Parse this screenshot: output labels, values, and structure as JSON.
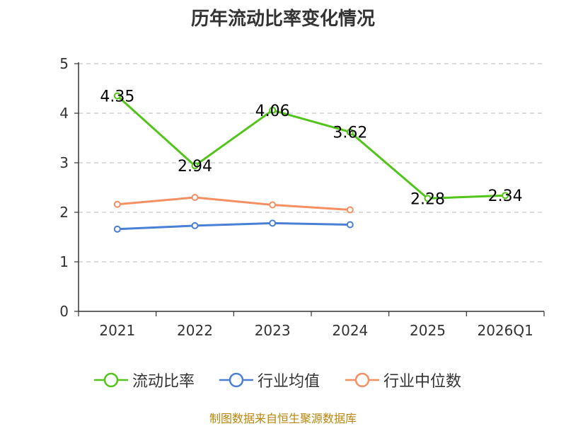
{
  "chart_data": {
    "type": "line",
    "title": "历年流动比率变化情况",
    "categories": [
      "2021",
      "2022",
      "2023",
      "2024",
      "2025",
      "2026Q1"
    ],
    "ylim": [
      0,
      5
    ],
    "yticks": [
      "0",
      "1",
      "2",
      "3",
      "4",
      "5"
    ],
    "grid": true,
    "legend_position": "bottom",
    "series": [
      {
        "name": "流动比率",
        "color": "#52c41a",
        "values": [
          4.35,
          2.94,
          4.06,
          3.62,
          2.28,
          2.34
        ],
        "labels": [
          "4.35",
          "2.94",
          "4.06",
          "3.62",
          "2.28",
          "2.34"
        ]
      },
      {
        "name": "行业均值",
        "color": "#4a7fd6",
        "values": [
          1.66,
          1.73,
          1.78,
          1.75,
          null,
          null
        ]
      },
      {
        "name": "行业中位数",
        "color": "#f59062",
        "values": [
          2.16,
          2.3,
          2.15,
          2.05,
          null,
          null
        ]
      }
    ]
  },
  "legend": {
    "items": [
      {
        "label": "流动比率",
        "color": "#52c41a"
      },
      {
        "label": "行业均值",
        "color": "#4a7fd6"
      },
      {
        "label": "行业中位数",
        "color": "#f59062"
      }
    ]
  },
  "footer": {
    "source": "制图数据来自恒生聚源数据库"
  }
}
